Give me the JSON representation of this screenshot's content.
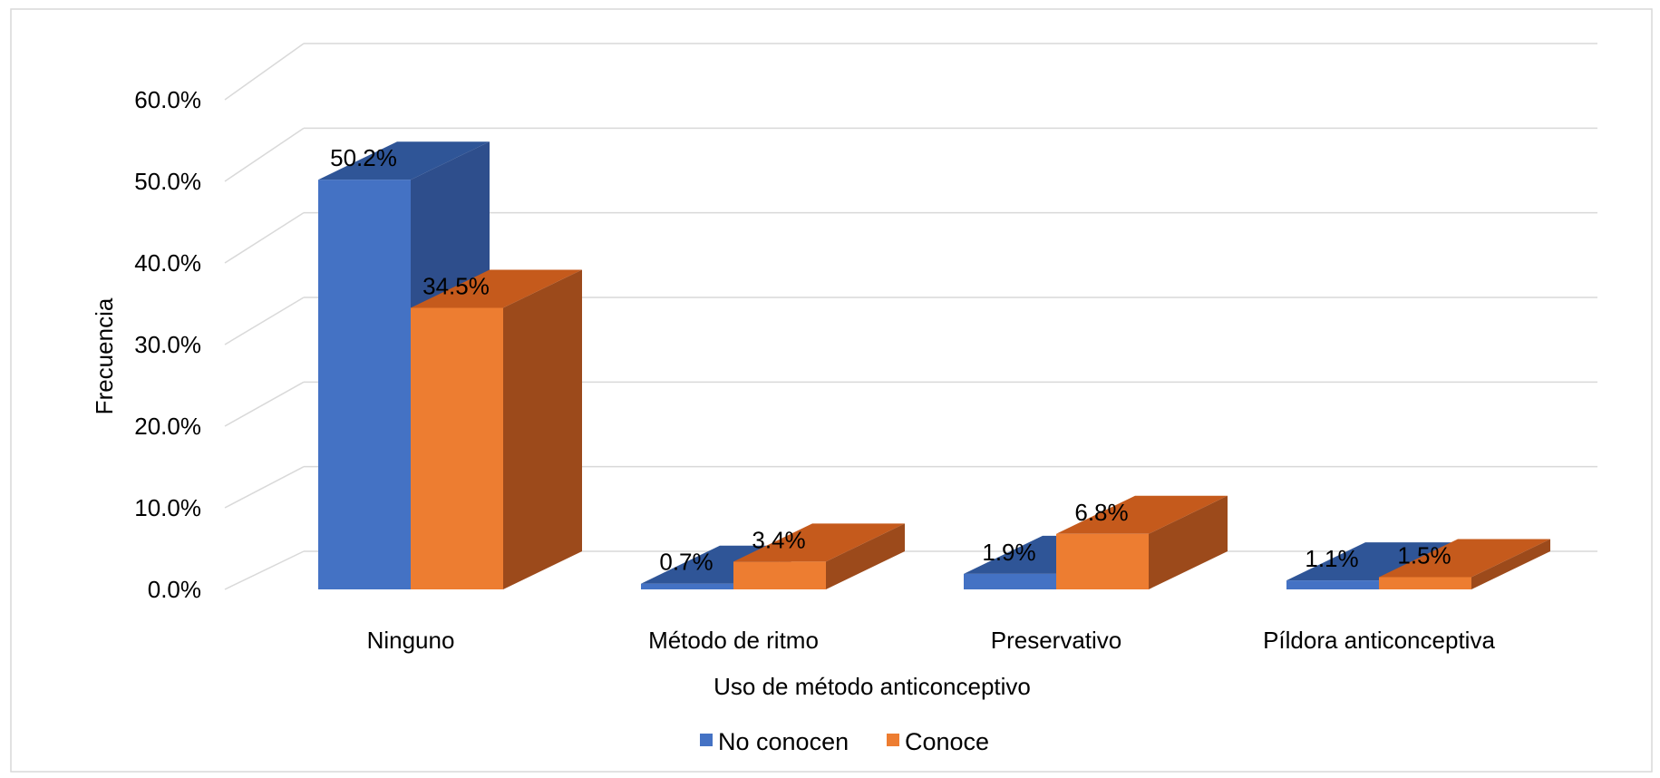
{
  "chart_data": {
    "type": "bar",
    "title": "",
    "xlabel": "Uso de método anticonceptivo",
    "ylabel": "Frecuencia",
    "ylim": [
      0,
      60
    ],
    "yticks": [
      "0.0%",
      "10.0%",
      "20.0%",
      "30.0%",
      "40.0%",
      "50.0%",
      "60.0%"
    ],
    "categories": [
      "Ninguno",
      "Método de ritmo",
      "Preservativo",
      "Píldora anticonceptiva"
    ],
    "series": [
      {
        "name": "No conocen",
        "values": [
          50.2,
          0.7,
          1.9,
          1.1
        ],
        "labels": [
          "50.2%",
          "0.7%",
          "1.9%",
          "1.1%"
        ],
        "color": "#4472C4",
        "color_top": "#2F5597",
        "color_side": "#2E4E8C"
      },
      {
        "name": "Conoce",
        "values": [
          34.5,
          3.4,
          6.8,
          1.5
        ],
        "labels": [
          "34.5%",
          "3.4%",
          "6.8%",
          "1.5%"
        ],
        "color": "#ED7D31",
        "color_top": "#C55A1C",
        "color_side": "#9C4A1B"
      }
    ],
    "grid": true,
    "legend": "bottom",
    "style": "3d-clustered-column"
  }
}
